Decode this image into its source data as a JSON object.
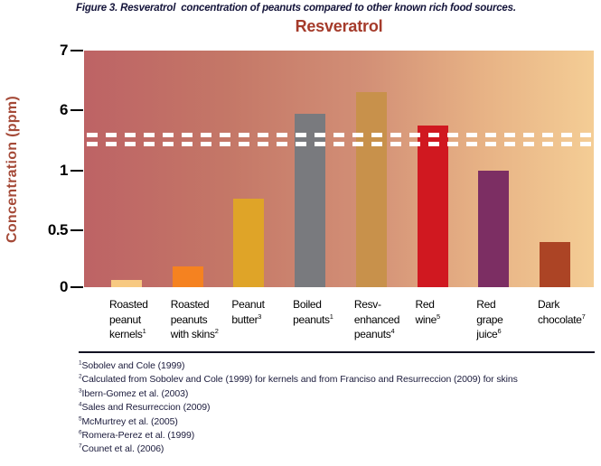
{
  "figure_caption": "Figure 3. Resveratrol  concentration of peanuts compared to other known rich food sources.",
  "chart": {
    "title": "Resveratrol",
    "y_axis_label": "Concentration (ppm)",
    "title_color": "#A53B2B",
    "axis_label_color": "#A54A38"
  },
  "chart_data": {
    "type": "bar",
    "title": "Resveratrol",
    "xlabel": "",
    "ylabel": "Concentration (ppm)",
    "y_ticks": [
      0,
      0.5,
      1,
      6,
      7
    ],
    "axis_break": {
      "between": [
        1,
        6
      ],
      "style": "two horizontal white dashed lines across plot"
    },
    "legend": "none",
    "grid": false,
    "background_gradient": [
      "#BD6365",
      "#C47767",
      "#D28F76",
      "#E7B285",
      "#F4CD95"
    ],
    "categories": [
      "Roasted peanut kernels¹",
      "Roasted peanuts with skins²",
      "Peanut butter³",
      "Boiled peanuts¹",
      "Resv-enhanced peanuts⁴",
      "Red wine⁵",
      "Red grape juice⁶",
      "Dark chocolate⁷"
    ],
    "values": [
      0.06,
      0.18,
      0.76,
      5.95,
      6.3,
      5.75,
      1.0,
      0.4
    ],
    "bars": [
      {
        "label_lines": [
          "Roasted",
          "peanut",
          "kernels"
        ],
        "sup": "1",
        "value": 0.06,
        "color": "#F7C981"
      },
      {
        "label_lines": [
          "Roasted",
          "peanuts",
          "with skins"
        ],
        "sup": "2",
        "value": 0.18,
        "color": "#F58220"
      },
      {
        "label_lines": [
          "Peanut",
          "butter"
        ],
        "sup": "3",
        "value": 0.76,
        "color": "#DFA428"
      },
      {
        "label_lines": [
          "Boiled",
          "peanuts"
        ],
        "sup": "1",
        "value": 5.95,
        "color": "#797A7E"
      },
      {
        "label_lines": [
          "Resv-",
          "enhanced",
          "peanuts"
        ],
        "sup": "4",
        "value": 6.3,
        "color": "#C8914B"
      },
      {
        "label_lines": [
          "Red",
          "wine"
        ],
        "sup": "5",
        "value": 5.75,
        "color": "#D01820"
      },
      {
        "label_lines": [
          "Red",
          "grape",
          "juice"
        ],
        "sup": "6",
        "value": 1.0,
        "color": "#7C2E63"
      },
      {
        "label_lines": [
          "Dark",
          "chocolate"
        ],
        "sup": "7",
        "value": 0.4,
        "color": "#AC4425"
      }
    ]
  },
  "footnotes": [
    {
      "sup": "1",
      "text": "Sobolev and Cole (1999)"
    },
    {
      "sup": "2",
      "text": "Calculated from Sobolev and Cole (1999) for kernels and from Franciso and Resurreccion (2009) for skins"
    },
    {
      "sup": "3",
      "text": "Ibern-Gomez et al. (2003)"
    },
    {
      "sup": "4",
      "text": "Sales and Resurreccion (2009)"
    },
    {
      "sup": "5",
      "text": "McMurtrey et al. (2005)"
    },
    {
      "sup": "6",
      "text": "Romera-Perez et al. (1999)"
    },
    {
      "sup": "7",
      "text": "Counet et al. (2006)"
    }
  ]
}
